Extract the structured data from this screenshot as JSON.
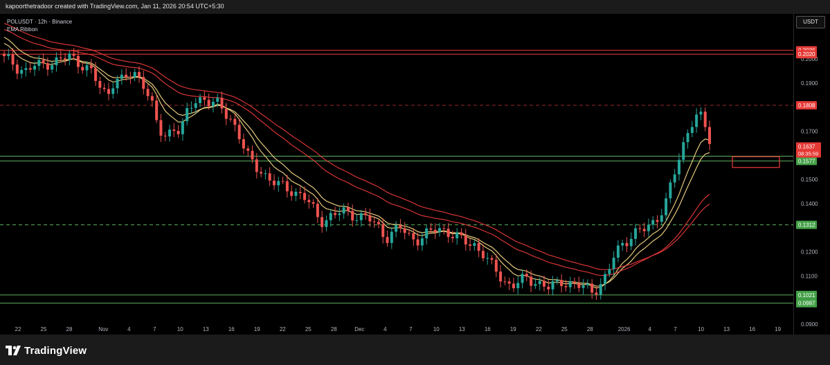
{
  "header": {
    "title": "kapoorthetradoor created with TradingView.com, Jan 11, 2026 20:54 UTC+5:30"
  },
  "legend": {
    "symbol_line": "POLUSDT · 12h · Binance",
    "indicator": "EMA Ribbon"
  },
  "currency": "USDT",
  "footer": {
    "brand": "TradingView"
  },
  "colors": {
    "up": "#26a69a",
    "down": "#ef5350",
    "ema_fast": "#ffe08a",
    "ema_slow": "#ef3b3b",
    "support": "#5fb35f",
    "resistance": "#ef3b3b",
    "dashed": "#9a2b2b"
  },
  "chart_data": {
    "type": "candlestick",
    "symbol": "POLUSDT",
    "timeframe": "12h",
    "exchange": "Binance",
    "ylim": [
      0.085,
      0.212
    ],
    "y_ticks": [
      "0.2000",
      "0.1900",
      "0.1700",
      "0.1500",
      "0.1400",
      "0.1200",
      "0.1100",
      "0.0900"
    ],
    "x_ticks": [
      "22",
      "25",
      "28",
      "Nov",
      "4",
      "7",
      "10",
      "13",
      "16",
      "19",
      "22",
      "25",
      "28",
      "Dec",
      "4",
      "7",
      "10",
      "13",
      "16",
      "19",
      "22",
      "25",
      "28",
      "2026",
      "4",
      "7",
      "10",
      "13",
      "16",
      "19"
    ],
    "horizontal_lines": [
      {
        "value": 0.2036,
        "label": "0.2036",
        "style": "solid",
        "color": "red"
      },
      {
        "value": 0.202,
        "label": "0.2020",
        "style": "solid",
        "color": "red"
      },
      {
        "value": 0.1808,
        "label": "0.1808",
        "style": "dashed",
        "color": "red"
      },
      {
        "value": 0.1597,
        "label": "0.1597",
        "style": "solid",
        "color": "green"
      },
      {
        "value": 0.1577,
        "label": "0.1577",
        "style": "solid",
        "color": "green"
      },
      {
        "value": 0.1312,
        "label": "0.1312",
        "style": "dashed",
        "color": "green"
      },
      {
        "value": 0.1021,
        "label": "0.1021",
        "style": "solid",
        "color": "green"
      },
      {
        "value": 0.0987,
        "label": "0.0987",
        "style": "solid",
        "color": "green"
      }
    ],
    "current_price": {
      "value": 0.1637,
      "label": "0.1637",
      "countdown": "08:35:59"
    },
    "target_zone": {
      "from": "Jan 14",
      "to": "Jan 19",
      "low": 0.155,
      "high": 0.1595
    },
    "x_start": "Oct 21, 2025",
    "candle_interval_hours": 12,
    "candle_count": 163,
    "closes_sampled": [
      0.2,
      0.199,
      0.196,
      0.195,
      0.197,
      0.1975,
      0.1985,
      0.199,
      0.2,
      0.201,
      0.199,
      0.197,
      0.194,
      0.188,
      0.185,
      0.192,
      0.191,
      0.193,
      0.194,
      0.19,
      0.182,
      0.17,
      0.168,
      0.172,
      0.17,
      0.178,
      0.183,
      0.184,
      0.182,
      0.181,
      0.178,
      0.175,
      0.168,
      0.16,
      0.156,
      0.154,
      0.15,
      0.148,
      0.147,
      0.146,
      0.144,
      0.142,
      0.138,
      0.133,
      0.134,
      0.135,
      0.137,
      0.136,
      0.135,
      0.134,
      0.133,
      0.13,
      0.126,
      0.128,
      0.13,
      0.127,
      0.125,
      0.126,
      0.128,
      0.13,
      0.129,
      0.127,
      0.125,
      0.124,
      0.123,
      0.12,
      0.115,
      0.112,
      0.108,
      0.106,
      0.107,
      0.109,
      0.108,
      0.107,
      0.105,
      0.106,
      0.108,
      0.107,
      0.106,
      0.105,
      0.104,
      0.106,
      0.11,
      0.118,
      0.123,
      0.126,
      0.128,
      0.129,
      0.131,
      0.135,
      0.14,
      0.15,
      0.16,
      0.17,
      0.177,
      0.175,
      0.166
    ]
  }
}
